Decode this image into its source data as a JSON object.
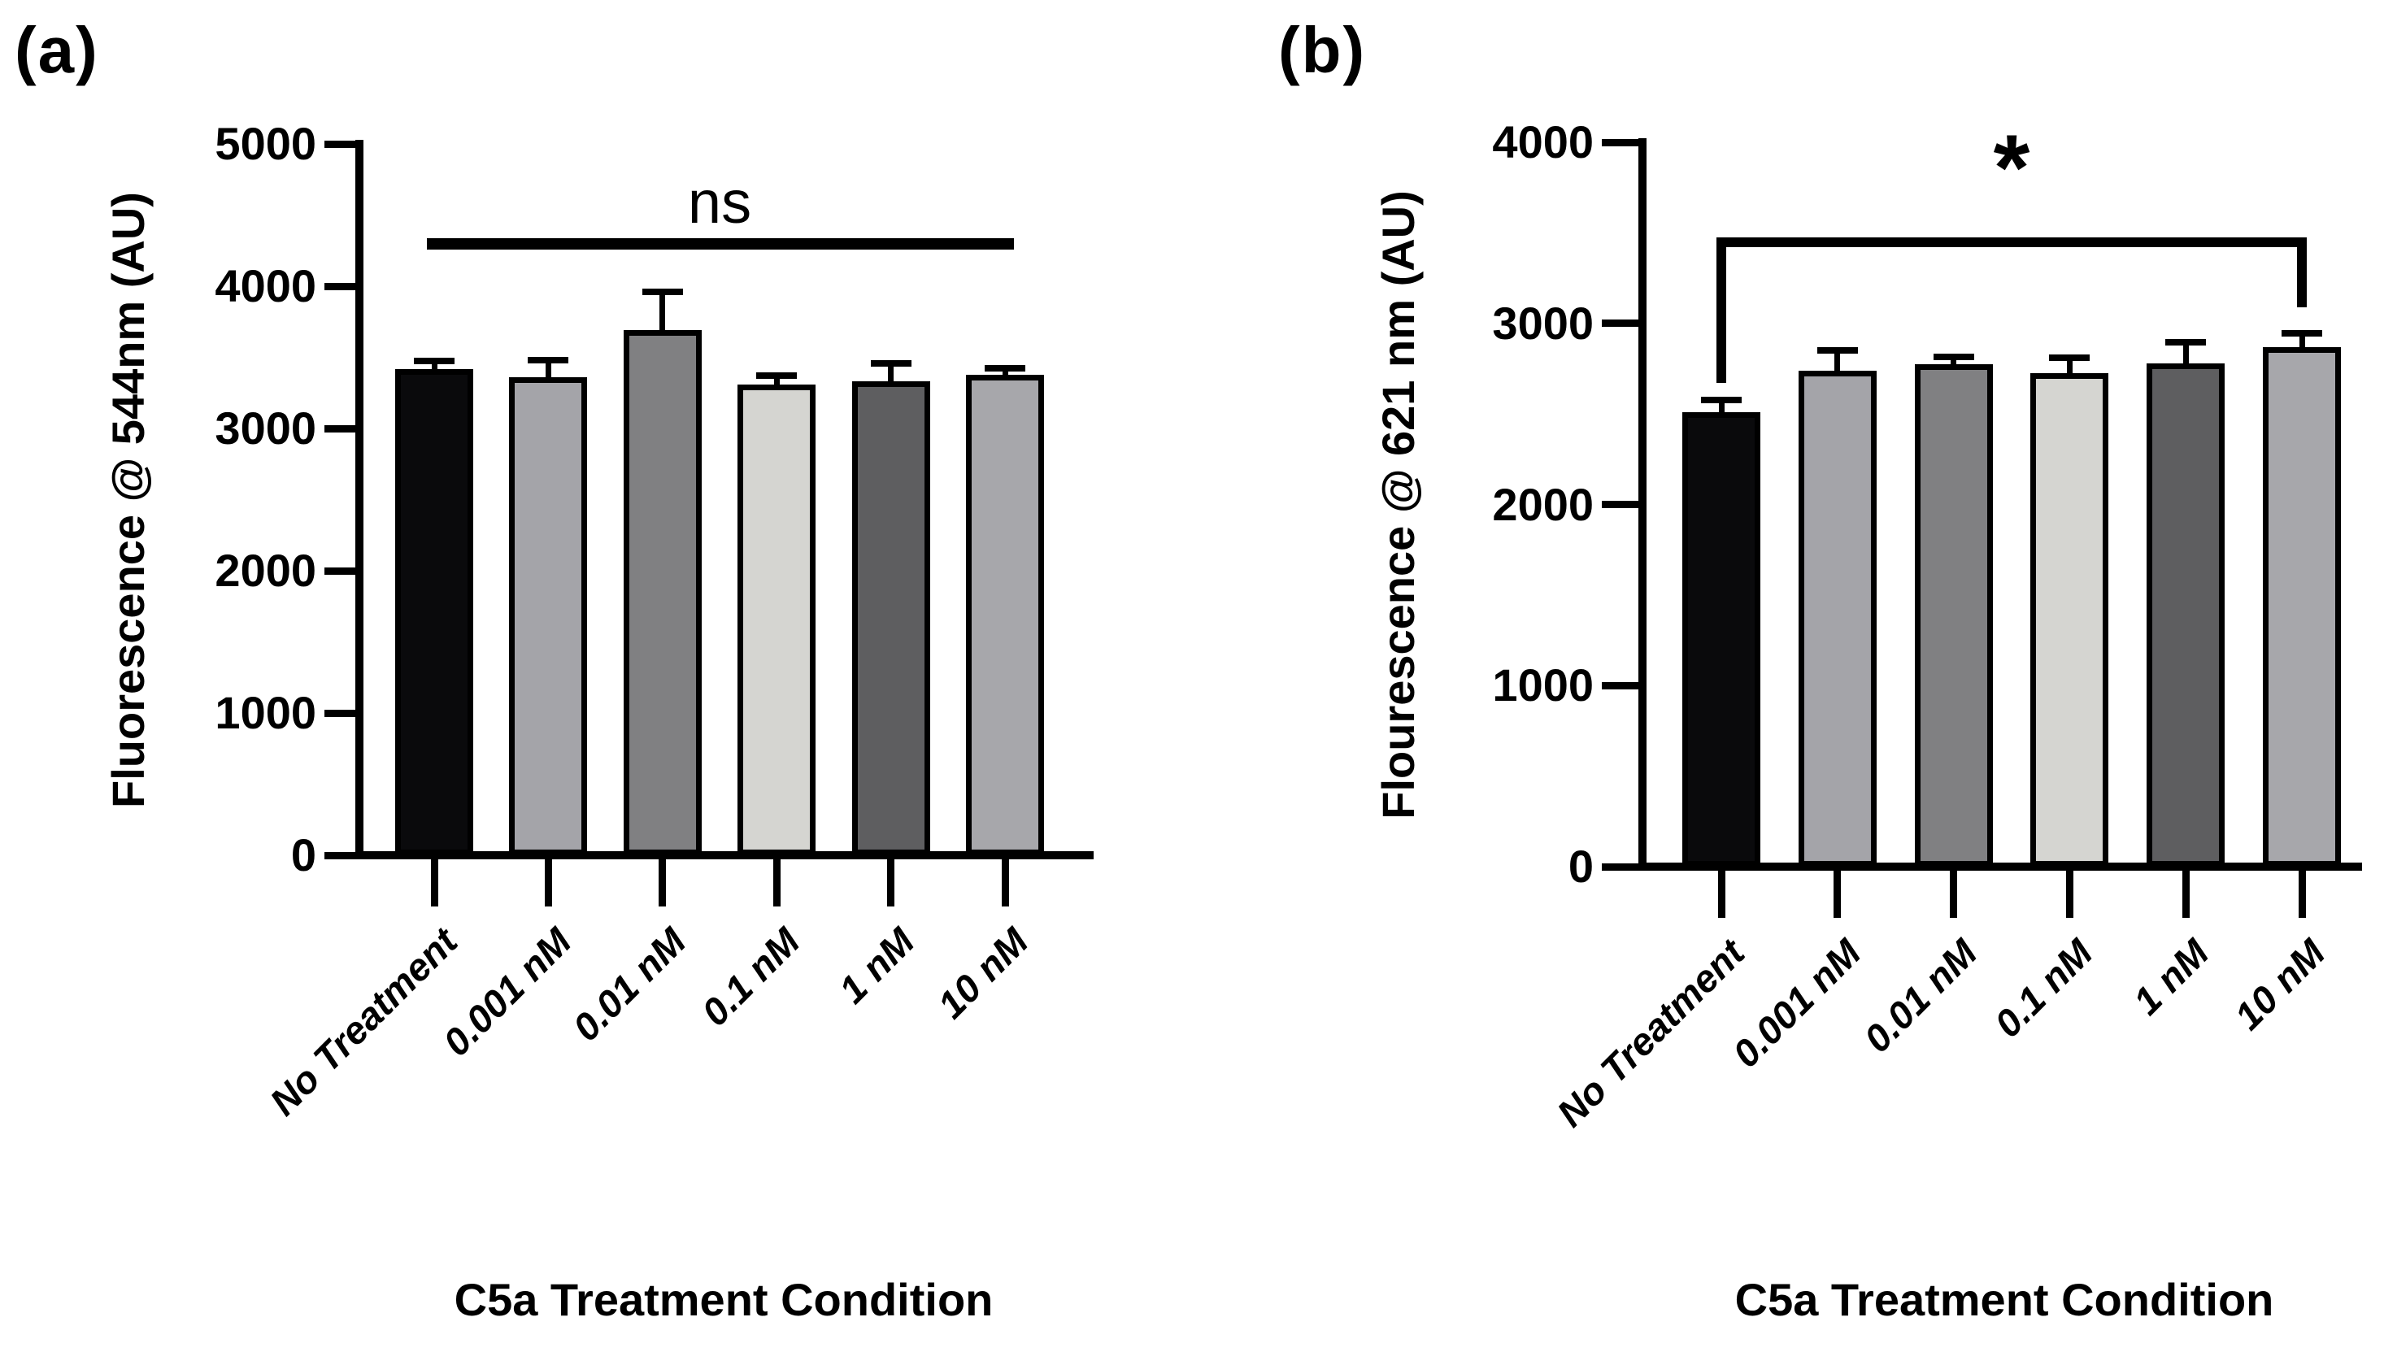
{
  "chart_data": [
    {
      "type": "bar",
      "panel_label": "(a)",
      "categories": [
        "No Treatment",
        "0.001 nM",
        "0.01 nM",
        "0.1 nM",
        "1 nM",
        "10 nM"
      ],
      "values": [
        3420,
        3360,
        3690,
        3310,
        3330,
        3380
      ],
      "errors_plus": [
        55,
        120,
        270,
        60,
        130,
        45
      ],
      "bar_colors": [
        "#0a0a0c",
        "#a4a4a9",
        "#808082",
        "#d5d5d1",
        "#5e5e60",
        "#a7a7ab"
      ],
      "xlabel": "C5a Treatment Condition",
      "ylabel": "Fluorescence @ 544nm (AU)",
      "ylim": [
        0,
        5000
      ],
      "yticks": [
        0,
        1000,
        2000,
        3000,
        4000,
        5000
      ],
      "grid": false,
      "legend": null,
      "annotation": {
        "label": "ns",
        "style": "line",
        "from_category": "No Treatment",
        "to_category": "10 nM",
        "from_index": 0,
        "to_index": 5,
        "line_value": 4300
      }
    },
    {
      "type": "bar",
      "panel_label": "(b)",
      "categories": [
        "No Treatment",
        "0.001 nM",
        "0.01 nM",
        "0.1 nM",
        "1 nM",
        "10 nM"
      ],
      "values": [
        2510,
        2740,
        2775,
        2725,
        2780,
        2870
      ],
      "errors_plus": [
        65,
        110,
        40,
        85,
        115,
        75
      ],
      "bar_colors": [
        "#0a0a0c",
        "#a4a4a9",
        "#808082",
        "#d5d5d1",
        "#5e5e60",
        "#a7a7ab"
      ],
      "xlabel": "C5a Treatment Condition",
      "ylabel": "Flourescence @ 621 nm (AU)",
      "ylim": [
        0,
        4000
      ],
      "yticks": [
        0,
        1000,
        2000,
        3000,
        4000
      ],
      "grid": false,
      "legend": null,
      "annotation": {
        "label": "*",
        "style": "bracket",
        "from_category": "No Treatment",
        "to_category": "10 nM",
        "from_index": 0,
        "to_index": 5,
        "line_value": 3450,
        "from_drop_value": 2670,
        "to_drop_value": 3090
      }
    }
  ]
}
